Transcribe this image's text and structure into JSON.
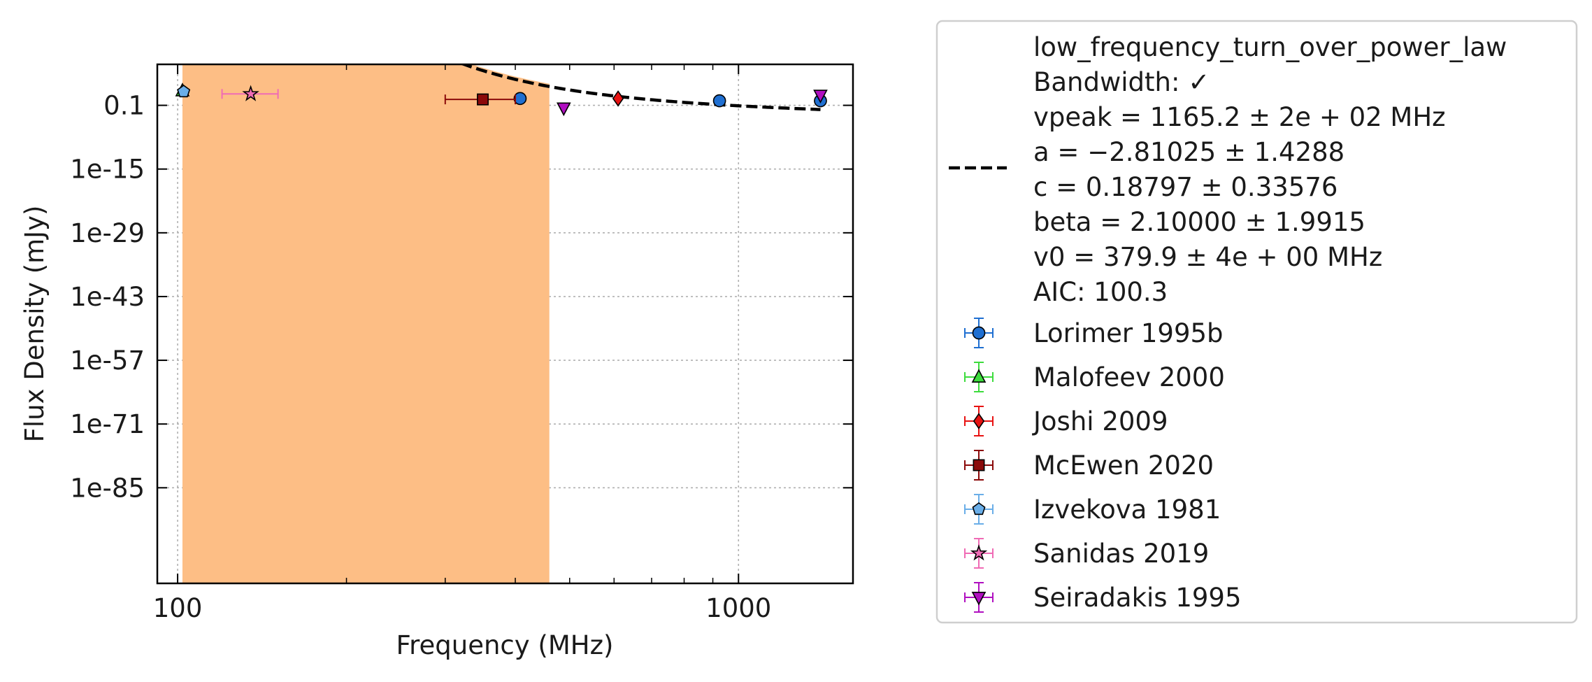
{
  "chart_data": {
    "type": "scatter",
    "xlabel": "Frequency (MHz)",
    "ylabel": "Flux Density (mJy)",
    "xscale": "log",
    "yscale": "log",
    "xlim": [
      92,
      1600
    ],
    "ylim_log10": [
      -106,
      8
    ],
    "grid": true,
    "legend_placement": "outside-right",
    "x_ticks": [
      {
        "value": 100,
        "label": "100"
      },
      {
        "value": 1000,
        "label": "1000"
      }
    ],
    "x_minor_ticks": [
      200,
      300,
      400,
      500,
      600,
      700,
      800,
      900
    ],
    "y_ticks": [
      {
        "log10": -1,
        "label": "0.1"
      },
      {
        "log10": -15,
        "label": "1e-15"
      },
      {
        "log10": -29,
        "label": "1e-29"
      },
      {
        "log10": -43,
        "label": "1e-43"
      },
      {
        "log10": -57,
        "label": "1e-57"
      },
      {
        "log10": -71,
        "label": "1e-71"
      },
      {
        "log10": -85,
        "label": "1e-85"
      }
    ],
    "fit": {
      "model": "low_frequency_turn_over_power_law",
      "legend_lines": [
        "low_frequency_turn_over_power_law",
        "Bandwidth: ✓",
        "vpeak = 1165.2 ± 2e + 02 MHz",
        "a = −2.81025 ± 1.4288",
        "c = 0.18797 ± 0.33576",
        "beta = 2.10000 ± 1.9915",
        "v0 = 379.9 ± 4e + 00 MHz",
        "AIC: 100.3"
      ],
      "params": {
        "vpeak": 1165.2,
        "a": -2.81025,
        "c": 0.18797,
        "beta": 2.1,
        "v0": 379.9
      },
      "x_range": [
        102,
        1400
      ],
      "line_color": "#000000",
      "band_color": "#fdbe85",
      "band_x_range": [
        102,
        460
      ]
    },
    "series": [
      {
        "name": "Lorimer 1995b",
        "marker": "circle",
        "color": "#1f6fd1",
        "ecolor": "#1f6fd1",
        "points": [
          {
            "x": 408,
            "log10y": 0.5
          },
          {
            "x": 925,
            "log10y": 0.0
          },
          {
            "x": 1400,
            "log10y": 0.0
          }
        ]
      },
      {
        "name": "Malofeev 2000",
        "marker": "triangle-up",
        "color": "#3ddc3d",
        "ecolor": "#3ddc3d",
        "points": [
          {
            "x": 102,
            "log10y": 2.2
          }
        ]
      },
      {
        "name": "Joshi 2009",
        "marker": "diamond",
        "color": "#e81212",
        "ecolor": "#e81212",
        "points": [
          {
            "x": 610,
            "log10y": 0.5
          }
        ]
      },
      {
        "name": "McEwen 2020",
        "marker": "square",
        "color": "#8b0a0a",
        "ecolor": "#8b0a0a",
        "points": [
          {
            "x": 350,
            "log10y": 0.3,
            "xerr": [
              300,
              400
            ]
          }
        ]
      },
      {
        "name": "Izvekova 1981",
        "marker": "pentagon",
        "color": "#6aaee8",
        "ecolor": "#6aaee8",
        "points": [
          {
            "x": 102.5,
            "log10y": 2.0
          }
        ]
      },
      {
        "name": "Sanidas 2019",
        "marker": "star",
        "color": "#f06bb5",
        "ecolor": "#f06bb5",
        "points": [
          {
            "x": 135,
            "log10y": 1.5,
            "xerr": [
              120,
              151
            ]
          }
        ]
      },
      {
        "name": "Seiradakis 1995",
        "marker": "triangle-down",
        "color": "#b00fc0",
        "ecolor": "#b00fc0",
        "points": [
          {
            "x": 488,
            "log10y": -1.6
          },
          {
            "x": 1400,
            "log10y": 1.2
          }
        ]
      }
    ]
  }
}
